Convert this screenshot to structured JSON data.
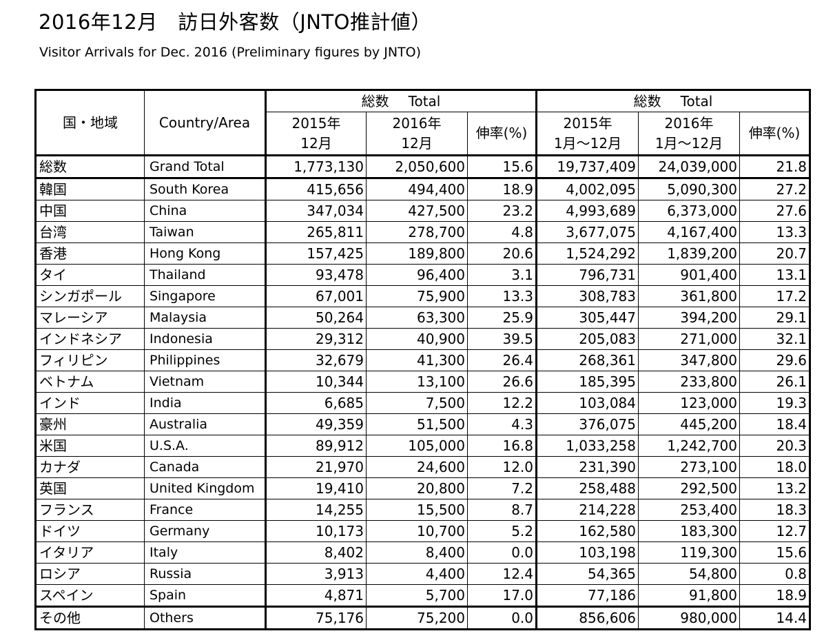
{
  "header": {
    "title": "2016年12月　訪日外客数（JNTO推計値）",
    "subtitle": "Visitor Arrivals for Dec. 2016 (Preliminary figures by JNTO)"
  },
  "table": {
    "col_ja": "国・地域",
    "col_en": "Country/Area",
    "group_total_ja": "総数",
    "group_total_en": "Total",
    "h_2015": "2015年",
    "h_2016": "2016年",
    "h_dec": "12月",
    "h_jan_dec": "1月～12月",
    "h_growth": "伸率(%)",
    "rows": [
      {
        "ja": "総数",
        "en": "Grand Total",
        "v": [
          "1,773,130",
          "2,050,600",
          "15.6",
          "19,737,409",
          "24,039,000",
          "21.8"
        ]
      },
      {
        "ja": "韓国",
        "en": "South Korea",
        "v": [
          "415,656",
          "494,400",
          "18.9",
          "4,002,095",
          "5,090,300",
          "27.2"
        ]
      },
      {
        "ja": "中国",
        "en": "China",
        "v": [
          "347,034",
          "427,500",
          "23.2",
          "4,993,689",
          "6,373,000",
          "27.6"
        ]
      },
      {
        "ja": "台湾",
        "en": "Taiwan",
        "v": [
          "265,811",
          "278,700",
          "4.8",
          "3,677,075",
          "4,167,400",
          "13.3"
        ]
      },
      {
        "ja": "香港",
        "en": "Hong Kong",
        "v": [
          "157,425",
          "189,800",
          "20.6",
          "1,524,292",
          "1,839,200",
          "20.7"
        ]
      },
      {
        "ja": "タイ",
        "en": "Thailand",
        "v": [
          "93,478",
          "96,400",
          "3.1",
          "796,731",
          "901,400",
          "13.1"
        ]
      },
      {
        "ja": "シンガポール",
        "en": "Singapore",
        "v": [
          "67,001",
          "75,900",
          "13.3",
          "308,783",
          "361,800",
          "17.2"
        ]
      },
      {
        "ja": "マレーシア",
        "en": "Malaysia",
        "v": [
          "50,264",
          "63,300",
          "25.9",
          "305,447",
          "394,200",
          "29.1"
        ]
      },
      {
        "ja": "インドネシア",
        "en": "Indonesia",
        "v": [
          "29,312",
          "40,900",
          "39.5",
          "205,083",
          "271,000",
          "32.1"
        ]
      },
      {
        "ja": "フィリピン",
        "en": "Philippines",
        "v": [
          "32,679",
          "41,300",
          "26.4",
          "268,361",
          "347,800",
          "29.6"
        ]
      },
      {
        "ja": "ベトナム",
        "en": "Vietnam",
        "v": [
          "10,344",
          "13,100",
          "26.6",
          "185,395",
          "233,800",
          "26.1"
        ]
      },
      {
        "ja": "インド",
        "en": "India",
        "v": [
          "6,685",
          "7,500",
          "12.2",
          "103,084",
          "123,000",
          "19.3"
        ]
      },
      {
        "ja": "豪州",
        "en": "Australia",
        "v": [
          "49,359",
          "51,500",
          "4.3",
          "376,075",
          "445,200",
          "18.4"
        ]
      },
      {
        "ja": "米国",
        "en": "U.S.A.",
        "v": [
          "89,912",
          "105,000",
          "16.8",
          "1,033,258",
          "1,242,700",
          "20.3"
        ]
      },
      {
        "ja": "カナダ",
        "en": "Canada",
        "v": [
          "21,970",
          "24,600",
          "12.0",
          "231,390",
          "273,100",
          "18.0"
        ]
      },
      {
        "ja": "英国",
        "en": "United Kingdom",
        "v": [
          "19,410",
          "20,800",
          "7.2",
          "258,488",
          "292,500",
          "13.2"
        ]
      },
      {
        "ja": "フランス",
        "en": "France",
        "v": [
          "14,255",
          "15,500",
          "8.7",
          "214,228",
          "253,400",
          "18.3"
        ]
      },
      {
        "ja": "ドイツ",
        "en": "Germany",
        "v": [
          "10,173",
          "10,700",
          "5.2",
          "162,580",
          "183,300",
          "12.7"
        ]
      },
      {
        "ja": "イタリア",
        "en": "Italy",
        "v": [
          "8,402",
          "8,400",
          "0.0",
          "103,198",
          "119,300",
          "15.6"
        ]
      },
      {
        "ja": "ロシア",
        "en": "Russia",
        "v": [
          "3,913",
          "4,400",
          "12.4",
          "54,365",
          "54,800",
          "0.8"
        ]
      },
      {
        "ja": "スペイン",
        "en": "Spain",
        "v": [
          "4,871",
          "5,700",
          "17.0",
          "77,186",
          "91,800",
          "18.9"
        ]
      },
      {
        "ja": "その他",
        "en": "Others",
        "v": [
          "75,176",
          "75,200",
          "0.0",
          "856,606",
          "980,000",
          "14.4"
        ]
      }
    ]
  }
}
